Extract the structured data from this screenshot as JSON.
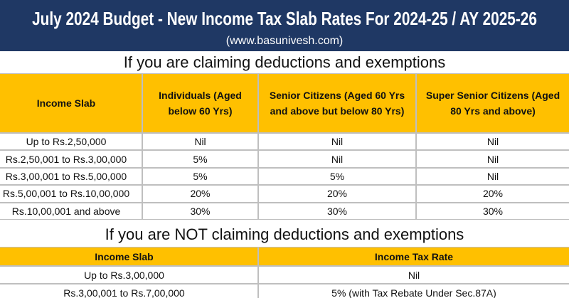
{
  "header": {
    "title": "July 2024 Budget - New Income Tax Slab Rates For 2024-25 / AY 2025-26",
    "subtitle": "(www.basunivesh.com)"
  },
  "section1": {
    "heading": "If you are claiming deductions and exemptions",
    "table": {
      "columns": [
        "Income Slab",
        "Individuals (Aged below 60 Yrs)",
        "Senior Citizens (Aged 60 Yrs and above but below 80 Yrs)",
        "Super Senior Citizens (Aged 80 Yrs and above)"
      ],
      "rows": [
        [
          "Up to Rs.2,50,000",
          "Nil",
          "Nil",
          "Nil"
        ],
        [
          "Rs.2,50,001 to Rs.3,00,000",
          "5%",
          "Nil",
          "Nil"
        ],
        [
          "Rs.3,00,001 to Rs.5,00,000",
          "5%",
          "5%",
          "Nil"
        ],
        [
          "Rs.5,00,001 to Rs.10,00,000",
          "20%",
          "20%",
          "20%"
        ],
        [
          "Rs.10,00,001 and above",
          "30%",
          "30%",
          "30%"
        ]
      ]
    }
  },
  "section2": {
    "heading": "If you are NOT claiming deductions and exemptions",
    "table": {
      "columns": [
        "Income Slab",
        "Income Tax Rate"
      ],
      "rows": [
        [
          "Up to Rs.3,00,000",
          "Nil"
        ],
        [
          "Rs.3,00,001 to Rs.7,00,000",
          "5% (with Tax Rebate Under Sec.87A)"
        ]
      ]
    }
  }
}
